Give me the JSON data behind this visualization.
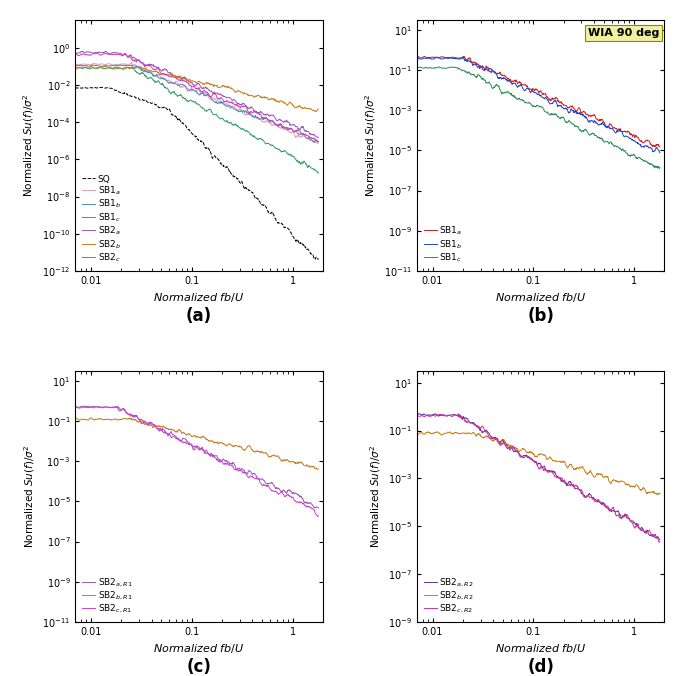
{
  "xlim": [
    0.007,
    2.0
  ],
  "panel_a": {
    "ylim_min": 1e-12,
    "ylim_max": 30,
    "ylabel": "Normalized $Su(f)/\\sigma^2$",
    "xlabel": "Normalized $fb/U$",
    "label": "(a)",
    "legend": [
      "SQ",
      "SB1$_a$",
      "SB1$_b$",
      "SB1$_c$",
      "SB2$_a$",
      "SB2$_b$",
      "SB2$_c$"
    ],
    "colors": [
      "black",
      "#e8a0b0",
      "#4f8fbf",
      "#3a9e6e",
      "#9b59b6",
      "#c87d1a",
      "#cc44bb"
    ],
    "styles": [
      "--",
      "-",
      "-",
      "-",
      "-",
      "-",
      "-"
    ]
  },
  "panel_b": {
    "ylim_min": 1e-11,
    "ylim_max": 30,
    "ylabel": "Normalized $Su(f)/\\sigma^2$",
    "xlabel": "Normalized $fb/U$",
    "label": "(b)",
    "annotation": "WIA 90 deg",
    "legend": [
      "SB1$_a$",
      "SB1$_b$",
      "SB1$_c$"
    ],
    "colors": [
      "#cc2222",
      "#2244cc",
      "#2e8b57"
    ]
  },
  "panel_c": {
    "ylim_min": 1e-11,
    "ylim_max": 30,
    "ylabel": "Normalized $Su(f)/\\sigma^2$",
    "xlabel": "Normalized $fb/U$",
    "label": "(c)",
    "legend": [
      "SB2$_{a,R1}$",
      "SB2$_{b,R1}$",
      "SB2$_{c,R1}$"
    ],
    "colors": [
      "#9b59b6",
      "#c87d1a",
      "#cc44cc"
    ]
  },
  "panel_d": {
    "ylim_min": 1e-09,
    "ylim_max": 30,
    "ylabel": "Normalized $Su(f)/\\sigma^2$",
    "xlabel": "Normalized $fb/U$",
    "label": "(d)",
    "legend": [
      "SB2$_{a,R2}$",
      "SB2$_{b,R2}$",
      "SB2$_{c,R2}$"
    ],
    "colors": [
      "#6a2fa0",
      "#c87d1a",
      "#cc3399"
    ]
  }
}
